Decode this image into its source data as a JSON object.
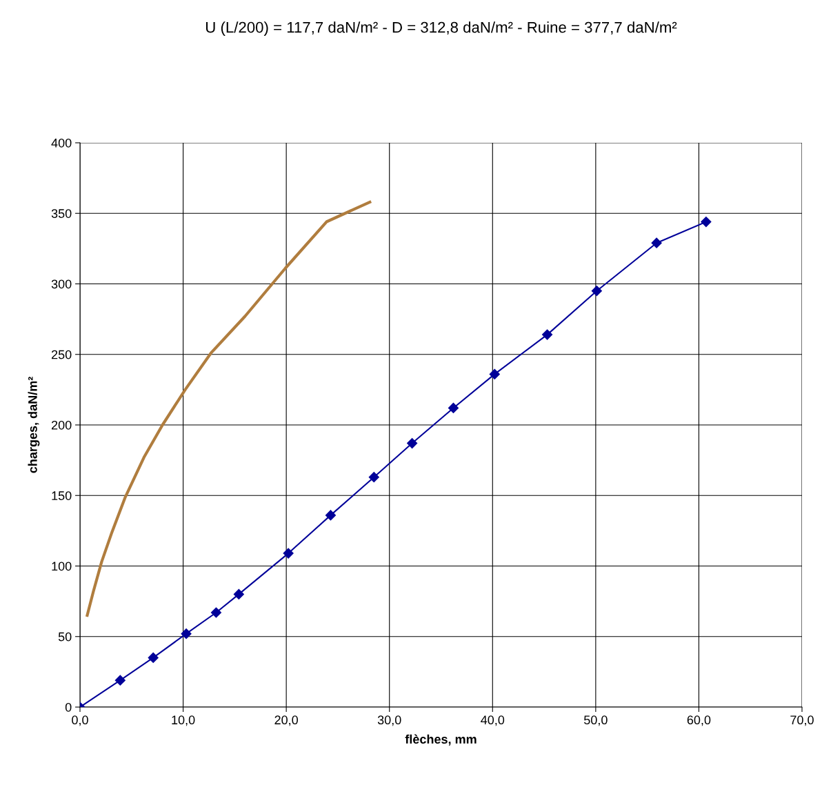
{
  "chart_data": {
    "type": "line",
    "title": "U (L/200) = 117,7 daN/m² - D = 312,8 daN/m² - Ruine = 377,7 daN/m²",
    "xlabel": "flèches, mm",
    "ylabel": "charges, daN/m²",
    "xlim": [
      0,
      70
    ],
    "ylim": [
      0,
      400
    ],
    "xticks": [
      {
        "value": 0,
        "label": "0,0"
      },
      {
        "value": 10,
        "label": "10,0"
      },
      {
        "value": 20,
        "label": "20,0"
      },
      {
        "value": 30,
        "label": "30,0"
      },
      {
        "value": 40,
        "label": "40,0"
      },
      {
        "value": 50,
        "label": "50,0"
      },
      {
        "value": 60,
        "label": "60,0"
      },
      {
        "value": 70,
        "label": "70,0"
      }
    ],
    "yticks": [
      0,
      50,
      100,
      150,
      200,
      250,
      300,
      350,
      400
    ],
    "grid": true,
    "legend": false,
    "series": [
      {
        "color": "#000099",
        "marker": "diamond",
        "x": [
          0,
          3.9,
          7.1,
          10.3,
          13.2,
          15.4,
          20.2,
          24.3,
          28.5,
          32.2,
          36.2,
          40.2,
          45.3,
          50.1,
          55.9,
          60.7
        ],
        "values": [
          0,
          19,
          35,
          52,
          67,
          80,
          109,
          136,
          163,
          187,
          212,
          236,
          264,
          295,
          329,
          344
        ]
      },
      {
        "color": "#b07d3e",
        "marker": "none",
        "x": [
          0.7,
          1.3,
          2.1,
          3.1,
          4.4,
          6.2,
          8.0,
          10.2,
          12.7,
          16.0,
          19.9,
          23.9,
          28.1
        ],
        "values": [
          65,
          82,
          103,
          124,
          149,
          177,
          200,
          225,
          251,
          277,
          311,
          344,
          358
        ]
      }
    ]
  }
}
